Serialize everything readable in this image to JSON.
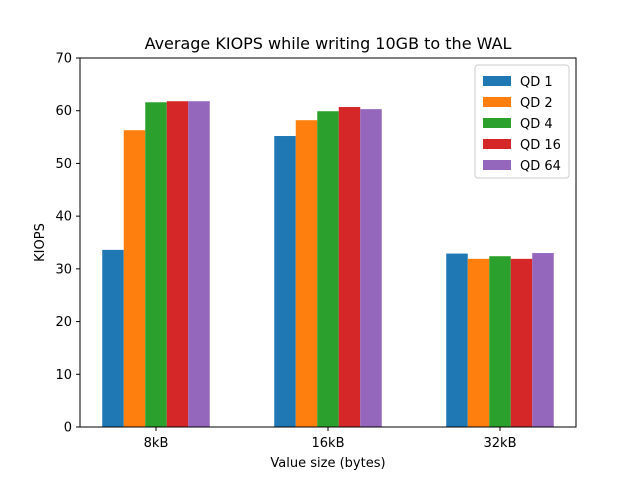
{
  "chart_data": {
    "type": "bar",
    "title": "Average KIOPS while writing 10GB to the WAL",
    "xlabel": "Value size (bytes)",
    "ylabel": "KIOPS",
    "categories": [
      "8kB",
      "16kB",
      "32kB"
    ],
    "ylim": [
      0,
      70
    ],
    "yticks": [
      0,
      10,
      20,
      30,
      40,
      50,
      60,
      70
    ],
    "grid": false,
    "legend_position": "top-right",
    "series": [
      {
        "name": "QD 1",
        "color": "#1f77b4",
        "values": [
          33.6,
          55.2,
          32.9
        ]
      },
      {
        "name": "QD 2",
        "color": "#ff7f0e",
        "values": [
          56.3,
          58.2,
          31.9
        ]
      },
      {
        "name": "QD 4",
        "color": "#2ca02c",
        "values": [
          61.6,
          59.9,
          32.4
        ]
      },
      {
        "name": "QD 16",
        "color": "#d62728",
        "values": [
          61.8,
          60.7,
          31.9
        ]
      },
      {
        "name": "QD 64",
        "color": "#9467bd",
        "values": [
          61.8,
          60.3,
          33.0
        ]
      }
    ]
  }
}
